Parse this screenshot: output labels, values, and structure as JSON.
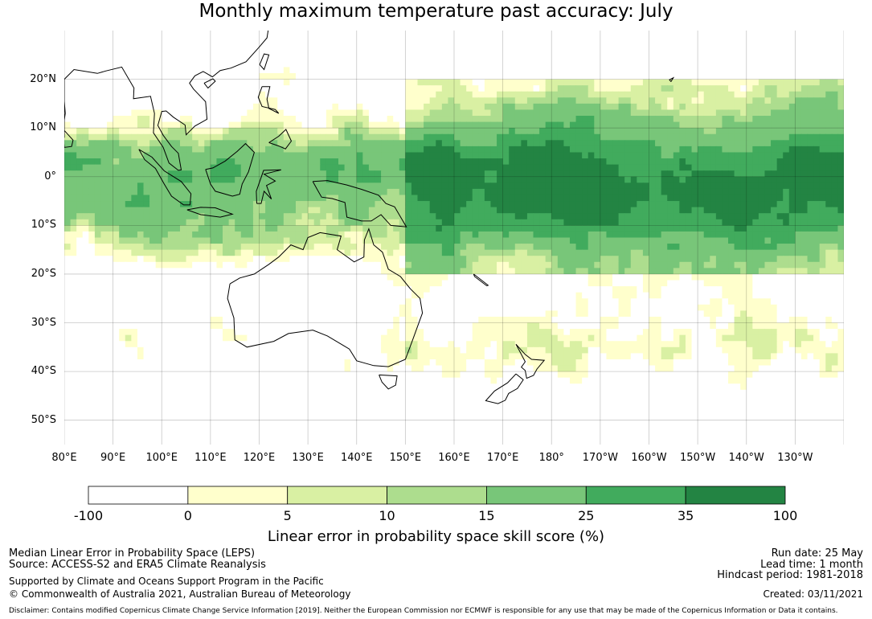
{
  "title": "Monthly maximum temperature past accuracy: July",
  "map": {
    "latitude_labels": [
      "20°N",
      "10°N",
      "0°",
      "10°S",
      "20°S",
      "30°S",
      "40°S",
      "50°S"
    ],
    "longitude_labels": [
      "80°E",
      "90°E",
      "100°E",
      "110°E",
      "120°E",
      "130°E",
      "140°E",
      "150°E",
      "160°E",
      "170°E",
      "180°",
      "170°W",
      "160°W",
      "150°W",
      "140°W",
      "130°W"
    ],
    "region": {
      "lon_range": [
        80,
        240
      ],
      "lat_range": [
        -55,
        30
      ]
    },
    "gridlines": true,
    "coastlines": true
  },
  "colorbar": {
    "ticks": [
      "-100",
      "0",
      "5",
      "10",
      "15",
      "25",
      "35",
      "100"
    ],
    "colors": [
      "#ffffff",
      "#ffffcc",
      "#d9f0a3",
      "#addd8e",
      "#78c679",
      "#41ab5d",
      "#238443"
    ],
    "label": "Linear error in probability space skill score (%)"
  },
  "footer": {
    "left": {
      "line1": "Median Linear Error in Probability Space (LEPS)",
      "line2": "Source: ACCESS-S2 and ERA5 Climate Reanalysis",
      "line3": "Supported by Climate and Oceans Support Program in the Pacific",
      "line4": "© Commonwealth of Australia 2021, Australian Bureau of Meteorology"
    },
    "right": {
      "run_date": "Run date: 25 May",
      "lead_time": "Lead time: 1 month",
      "hindcast": "Hindcast period: 1981-2018",
      "created": "Created: 03/11/2021"
    },
    "disclaimer": "Disclaimer: Contains modified Copernicus Climate Change Service Information [2019]. Neither the European Commission nor ECMWF is responsible for any use that may be made of the Copernicus Information or Data it contains."
  }
}
